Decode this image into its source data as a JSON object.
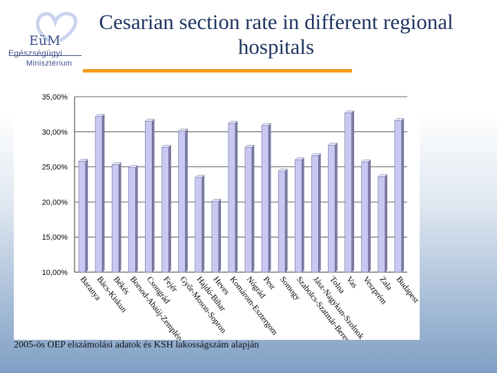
{
  "header": {
    "title": "Cesarian section rate in different regional hospitals",
    "logo_brand": "EüM",
    "logo_line1": "Egészségügyi",
    "logo_line2": "Minisztérium"
  },
  "footer": {
    "source": "2005-ös OEP elszámolási adatok és KSH lakosságszám alapján"
  },
  "colors": {
    "bar_front": "#c8c8f2",
    "bar_side": "#7d7da8",
    "bar_top": "#e6e6fa",
    "title": "#1f3560",
    "accent_rule": "#f29a1e"
  },
  "chart_data": {
    "type": "bar",
    "title": "",
    "xlabel": "",
    "ylabel": "",
    "ylim": [
      10,
      35
    ],
    "y_ticks": [
      "10,00%",
      "15,00%",
      "20,00%",
      "25,00%",
      "30,00%",
      "35,00%"
    ],
    "grid": true,
    "legend": "none",
    "categories": [
      "Baranya",
      "Bács-Kiskun",
      "Békés",
      "Borsod-Abaúj-Zemplén",
      "Csongrád",
      "Fejér",
      "Győr-Moson-Sopron",
      "Hajdú-Bihar",
      "Heves",
      "Komárom-Esztergom",
      "Nógrád",
      "Pest",
      "Somogy",
      "Szabolcs-Szatmár-Bereg",
      "Jász-Nagykun-Szolnok",
      "Tolna",
      "Vas",
      "Veszprém",
      "Zala",
      "Budapest"
    ],
    "values": [
      25.8,
      32.2,
      25.3,
      24.9,
      31.5,
      27.8,
      30.1,
      23.5,
      20.1,
      31.2,
      27.8,
      30.9,
      24.4,
      26.0,
      26.6,
      28.1,
      32.7,
      25.7,
      23.6,
      31.6
    ]
  }
}
